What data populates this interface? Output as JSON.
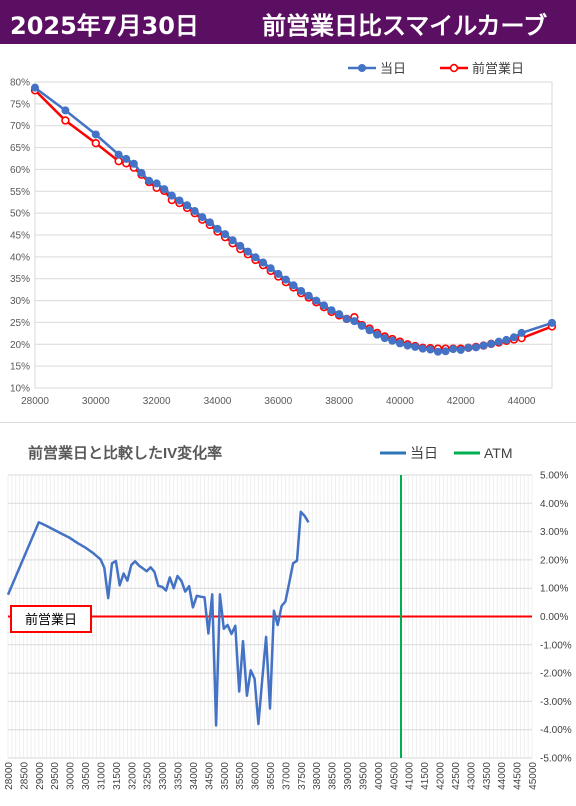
{
  "header": {
    "date": "2025年7月30日",
    "title": "前営業日比スマイルカーブ",
    "background_color": "#5b0f62"
  },
  "chart_data": [
    {
      "type": "line",
      "title": "",
      "xlabel": "",
      "ylabel": "",
      "x_ticks": [
        "28000",
        "30000",
        "32000",
        "34000",
        "36000",
        "38000",
        "40000",
        "42000",
        "44000"
      ],
      "y_ticks": [
        "10%",
        "15%",
        "20%",
        "25%",
        "30%",
        "35%",
        "40%",
        "45%",
        "50%",
        "55%",
        "60%",
        "65%",
        "70%",
        "75%",
        "80%"
      ],
      "xlim": [
        28000,
        45000
      ],
      "ylim": [
        10,
        80
      ],
      "grid": true,
      "legend_position": "top-right",
      "series": [
        {
          "name": "当日",
          "color": "#4472c4",
          "points": [
            [
              28000,
              78.7
            ],
            [
              29000,
              73.5
            ],
            [
              30000,
              68.0
            ],
            [
              30750,
              63.4
            ],
            [
              31000,
              62.4
            ],
            [
              31250,
              61.3
            ],
            [
              31500,
              59.2
            ],
            [
              31750,
              57.4
            ],
            [
              32000,
              56.8
            ],
            [
              32250,
              55.5
            ],
            [
              32500,
              54.0
            ],
            [
              32750,
              52.9
            ],
            [
              33000,
              51.8
            ],
            [
              33250,
              50.5
            ],
            [
              33500,
              49.1
            ],
            [
              33750,
              47.9
            ],
            [
              34000,
              46.4
            ],
            [
              34250,
              45.2
            ],
            [
              34500,
              43.8
            ],
            [
              34750,
              42.5
            ],
            [
              35000,
              41.2
            ],
            [
              35250,
              39.9
            ],
            [
              35500,
              38.7
            ],
            [
              35750,
              37.4
            ],
            [
              36000,
              36.1
            ],
            [
              36250,
              34.8
            ],
            [
              36500,
              33.5
            ],
            [
              36750,
              32.2
            ],
            [
              37000,
              31.1
            ],
            [
              37250,
              30.0
            ],
            [
              37500,
              28.9
            ],
            [
              37750,
              27.8
            ],
            [
              38000,
              26.9
            ],
            [
              38250,
              25.8
            ],
            [
              38500,
              25.3
            ],
            [
              38750,
              24.2
            ],
            [
              39000,
              23.2
            ],
            [
              39250,
              22.2
            ],
            [
              39500,
              21.4
            ],
            [
              39750,
              20.8
            ],
            [
              40000,
              20.2
            ],
            [
              40250,
              19.7
            ],
            [
              40500,
              19.4
            ],
            [
              40750,
              19.0
            ],
            [
              41000,
              18.8
            ],
            [
              41250,
              18.3
            ],
            [
              41500,
              18.4
            ],
            [
              41750,
              18.9
            ],
            [
              42000,
              18.7
            ],
            [
              42250,
              19.2
            ],
            [
              42500,
              19.3
            ],
            [
              42750,
              19.7
            ],
            [
              43000,
              20.1
            ],
            [
              43250,
              20.6
            ],
            [
              43500,
              21.0
            ],
            [
              43750,
              21.6
            ],
            [
              44000,
              22.6
            ],
            [
              45000,
              24.9
            ]
          ]
        },
        {
          "name": "前営業日",
          "color": "#ff0000",
          "points": [
            [
              28000,
              78.1
            ],
            [
              29000,
              71.2
            ],
            [
              30000,
              66.0
            ],
            [
              30750,
              61.9
            ],
            [
              31000,
              61.4
            ],
            [
              31250,
              60.4
            ],
            [
              31500,
              58.8
            ],
            [
              31750,
              57.1
            ],
            [
              32000,
              55.8
            ],
            [
              32250,
              55.1
            ],
            [
              32500,
              53.0
            ],
            [
              32750,
              52.3
            ],
            [
              33000,
              51.2
            ],
            [
              33250,
              50.0
            ],
            [
              33500,
              48.5
            ],
            [
              33750,
              47.3
            ],
            [
              34000,
              45.8
            ],
            [
              34250,
              44.5
            ],
            [
              34500,
              43.1
            ],
            [
              34750,
              41.8
            ],
            [
              35000,
              40.6
            ],
            [
              35250,
              39.3
            ],
            [
              35500,
              38.1
            ],
            [
              35750,
              36.8
            ],
            [
              36000,
              35.5
            ],
            [
              36250,
              34.2
            ],
            [
              36500,
              33.0
            ],
            [
              36750,
              31.7
            ],
            [
              37000,
              30.7
            ],
            [
              37250,
              29.6
            ],
            [
              37500,
              28.5
            ],
            [
              37750,
              27.4
            ],
            [
              38000,
              26.6
            ],
            [
              38250,
              25.8
            ],
            [
              38500,
              26.2
            ],
            [
              38750,
              24.4
            ],
            [
              39000,
              23.6
            ],
            [
              39250,
              22.6
            ],
            [
              39500,
              21.8
            ],
            [
              39750,
              21.2
            ],
            [
              40000,
              20.6
            ],
            [
              40250,
              20.0
            ],
            [
              40500,
              19.6
            ],
            [
              40750,
              19.2
            ],
            [
              41000,
              19.1
            ],
            [
              41250,
              19.0
            ],
            [
              41500,
              19.0
            ],
            [
              41750,
              19.0
            ],
            [
              42000,
              19.0
            ],
            [
              42250,
              19.2
            ],
            [
              42500,
              19.4
            ],
            [
              42750,
              19.7
            ],
            [
              43000,
              20.1
            ],
            [
              43250,
              20.4
            ],
            [
              43500,
              20.8
            ],
            [
              43750,
              21.1
            ],
            [
              44000,
              21.4
            ],
            [
              45000,
              24.1
            ]
          ]
        }
      ]
    },
    {
      "type": "line",
      "title": "前営業日と比較したIV変化率",
      "xlabel": "",
      "ylabel": "",
      "categories": [
        "28000",
        "28500",
        "29000",
        "29500",
        "30000",
        "30500",
        "31000",
        "31500",
        "32000",
        "32500",
        "33000",
        "33500",
        "34000",
        "34500",
        "35000",
        "35500",
        "36000",
        "36500",
        "37000",
        "37500",
        "38000",
        "38500",
        "39000",
        "39500",
        "40000",
        "40500",
        "41000",
        "41500",
        "42000",
        "42500",
        "43000",
        "43500",
        "44000",
        "44500",
        "45000"
      ],
      "y_ticks": [
        "5.00%",
        "4.00%",
        "3.00%",
        "2.00%",
        "1.00%",
        "0.00%",
        "-1.00%",
        "-2.00%",
        "-3.00%",
        "-4.00%",
        "-5.00%"
      ],
      "xlim": [
        28000,
        45000
      ],
      "ylim": [
        -5,
        5
      ],
      "grid": true,
      "legend_position": "top-right",
      "zero_line_label": "前営業日",
      "zero_line_color": "#ff0000",
      "atm": 40750,
      "series": [
        {
          "name": "当日",
          "color": "#4472c4",
          "points": [
            [
              28000,
              0.77
            ],
            [
              29000,
              3.33
            ],
            [
              29250,
              3.2
            ],
            [
              29500,
              3.06
            ],
            [
              29750,
              2.92
            ],
            [
              30000,
              2.78
            ],
            [
              30250,
              2.6
            ],
            [
              30500,
              2.44
            ],
            [
              30750,
              2.25
            ],
            [
              31000,
              2.02
            ],
            [
              31125,
              1.72
            ],
            [
              31250,
              0.65
            ],
            [
              31375,
              1.88
            ],
            [
              31500,
              1.96
            ],
            [
              31625,
              1.1
            ],
            [
              31750,
              1.52
            ],
            [
              31875,
              1.27
            ],
            [
              32000,
              1.82
            ],
            [
              32125,
              1.95
            ],
            [
              32250,
              1.8
            ],
            [
              32375,
              1.7
            ],
            [
              32500,
              1.6
            ],
            [
              32625,
              1.74
            ],
            [
              32750,
              1.58
            ],
            [
              32875,
              1.08
            ],
            [
              33000,
              1.05
            ],
            [
              33125,
              0.92
            ],
            [
              33250,
              1.38
            ],
            [
              33375,
              1.0
            ],
            [
              33500,
              1.43
            ],
            [
              33625,
              1.26
            ],
            [
              33750,
              0.88
            ],
            [
              33875,
              1.07
            ],
            [
              34000,
              0.32
            ],
            [
              34125,
              0.73
            ],
            [
              34250,
              0.7
            ],
            [
              34375,
              0.68
            ],
            [
              34500,
              -0.6
            ],
            [
              34625,
              0.78
            ],
            [
              34750,
              -3.85
            ],
            [
              34875,
              0.78
            ],
            [
              35000,
              -0.43
            ],
            [
              35125,
              -0.3
            ],
            [
              35250,
              -0.62
            ],
            [
              35375,
              -0.33
            ],
            [
              35500,
              -2.65
            ],
            [
              35625,
              -0.87
            ],
            [
              35750,
              -2.8
            ],
            [
              35875,
              -1.9
            ],
            [
              36000,
              -2.2
            ],
            [
              36125,
              -3.8
            ],
            [
              36250,
              -2.2
            ],
            [
              36375,
              -0.72
            ],
            [
              36500,
              -3.25
            ],
            [
              36625,
              0.2
            ],
            [
              36750,
              -0.3
            ],
            [
              36875,
              0.37
            ],
            [
              37000,
              0.53
            ],
            [
              37125,
              1.2
            ],
            [
              37250,
              1.88
            ],
            [
              37375,
              1.97
            ],
            [
              37500,
              3.7
            ],
            [
              37625,
              3.55
            ],
            [
              37750,
              3.33
            ]
          ]
        },
        {
          "name": "ATM",
          "color": "#00b050"
        }
      ]
    }
  ]
}
